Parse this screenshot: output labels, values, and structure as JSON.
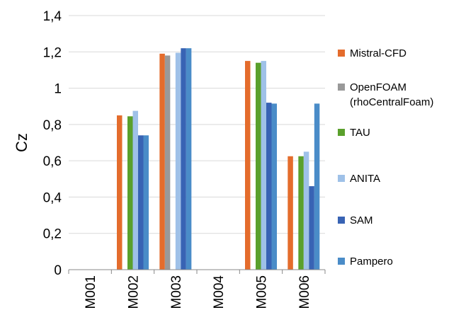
{
  "chart_data": {
    "type": "bar",
    "ylabel": "Cz",
    "ylim": [
      0,
      1.4
    ],
    "yticks": [
      "0",
      "0,2",
      "0,4",
      "0,6",
      "0,8",
      "1",
      "1,2",
      "1,4"
    ],
    "grid": true,
    "legend_position": "right",
    "categories": [
      "M001",
      "M002",
      "M003",
      "M004",
      "M005",
      "M006"
    ],
    "series": [
      {
        "name": "Mistral-CFD",
        "legend_lines": [
          "Mistral-CFD"
        ],
        "color": "#E46C2C",
        "values": [
          0,
          0.85,
          1.19,
          0,
          1.15,
          0.625
        ]
      },
      {
        "name": "OpenFOAM (rhoCentralFoam)",
        "legend_lines": [
          "OpenFOAM",
          "(rhoCentralFoam)"
        ],
        "color": "#999999",
        "values": [
          0,
          0,
          1.18,
          0,
          0,
          0
        ]
      },
      {
        "name": "TAU",
        "legend_lines": [
          "TAU"
        ],
        "color": "#5AA02C",
        "values": [
          0,
          0.845,
          0,
          0,
          1.14,
          0.625
        ]
      },
      {
        "name": "ANITA",
        "legend_lines": [
          "ANITA"
        ],
        "color": "#9FC1E8",
        "values": [
          0,
          0.875,
          1.195,
          0,
          1.15,
          0.65
        ]
      },
      {
        "name": "SAM",
        "legend_lines": [
          "SAM"
        ],
        "color": "#3863B4",
        "values": [
          0,
          0.74,
          1.22,
          0,
          0.92,
          0.46
        ]
      },
      {
        "name": "Pampero",
        "legend_lines": [
          "Pampero"
        ],
        "color": "#4A8CC8",
        "values": [
          0,
          0.74,
          1.22,
          0,
          0.915,
          0.915
        ]
      }
    ]
  }
}
